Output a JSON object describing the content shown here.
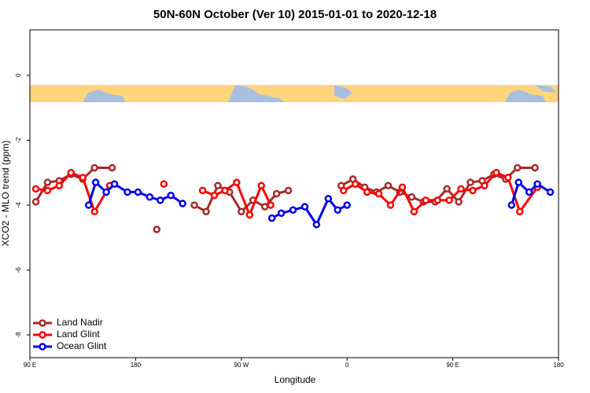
{
  "chart_data": {
    "type": "line",
    "title": "50N-60N October (Ver 10)   2015-01-01 to 2020-12-18",
    "x_label": "Longitude",
    "y_label": "XCO2 - MLO trend (ppm)",
    "xlim": [
      90,
      540
    ],
    "ylim": [
      -8.7,
      1.4
    ],
    "xticks": [
      {
        "value": 90,
        "label": "90 E"
      },
      180,
      {
        "value": 270,
        "label": "90 W"
      },
      {
        "value": 360,
        "label": "0"
      },
      {
        "value": 450,
        "label": "90 E"
      },
      {
        "value": 540,
        "label": "180"
      }
    ],
    "yticks": [
      0,
      -2,
      -4,
      -6,
      -8
    ],
    "legend": "bottom-left",
    "series": [
      {
        "name": "Land Nadir",
        "color": "#a52a2a",
        "x": [
          95,
          105,
          115,
          125,
          135,
          145,
          160,
          null,
          198,
          null,
          230,
          240,
          250,
          260,
          270,
          280,
          290,
          300,
          310,
          null,
          355,
          365,
          375,
          385,
          395,
          405,
          415,
          425,
          435,
          445,
          455,
          465,
          475,
          485,
          495,
          505,
          520
        ],
        "values": [
          -3.9,
          -3.3,
          -3.25,
          -3.05,
          -3.2,
          -2.85,
          -2.85,
          null,
          -4.75,
          null,
          -4.0,
          -4.2,
          -3.4,
          -3.6,
          -4.2,
          -3.85,
          -4.05,
          -3.65,
          -3.55,
          null,
          -3.4,
          -3.2,
          -3.45,
          -3.6,
          -3.4,
          -3.6,
          -3.75,
          -3.9,
          -3.9,
          -3.5,
          -3.9,
          -3.3,
          -3.25,
          -3.05,
          -3.2,
          -2.85,
          -2.85
        ]
      },
      {
        "name": "Land Glint",
        "color": "#ff0000",
        "x": [
          95,
          105,
          115,
          125,
          135,
          145,
          158,
          null,
          204,
          null,
          237,
          247,
          256,
          266,
          277,
          287,
          295,
          null,
          357,
          367,
          377,
          387,
          397,
          407,
          417,
          427,
          437,
          447,
          457,
          467,
          477,
          487,
          497,
          507,
          522
        ],
        "values": [
          -3.5,
          -3.55,
          -3.4,
          -3.0,
          -3.15,
          -4.2,
          -3.4,
          null,
          -3.35,
          null,
          -3.55,
          -3.7,
          -3.55,
          -3.3,
          -4.3,
          -3.4,
          -4.0,
          null,
          -3.55,
          -3.35,
          -3.6,
          -3.65,
          -4.0,
          -3.45,
          -4.2,
          -3.85,
          -3.85,
          -3.85,
          -3.5,
          -3.55,
          -3.4,
          -3.0,
          -3.15,
          -4.2,
          -3.45
        ]
      },
      {
        "name": "Ocean Glint",
        "color": "#0000ee",
        "x": [
          140,
          146,
          155,
          162,
          173,
          182,
          192,
          201,
          210,
          220,
          null,
          296,
          304,
          314,
          324,
          334,
          344,
          352,
          360,
          null,
          500,
          506,
          515,
          522,
          533
        ],
        "values": [
          -4.0,
          -3.3,
          -3.6,
          -3.35,
          -3.6,
          -3.6,
          -3.75,
          -3.85,
          -3.7,
          -3.95,
          null,
          -4.4,
          -4.25,
          -4.15,
          -4.05,
          -4.6,
          -3.8,
          -4.15,
          -4.0,
          null,
          -4.0,
          -3.3,
          -3.6,
          -3.35,
          -3.6
        ]
      }
    ]
  }
}
